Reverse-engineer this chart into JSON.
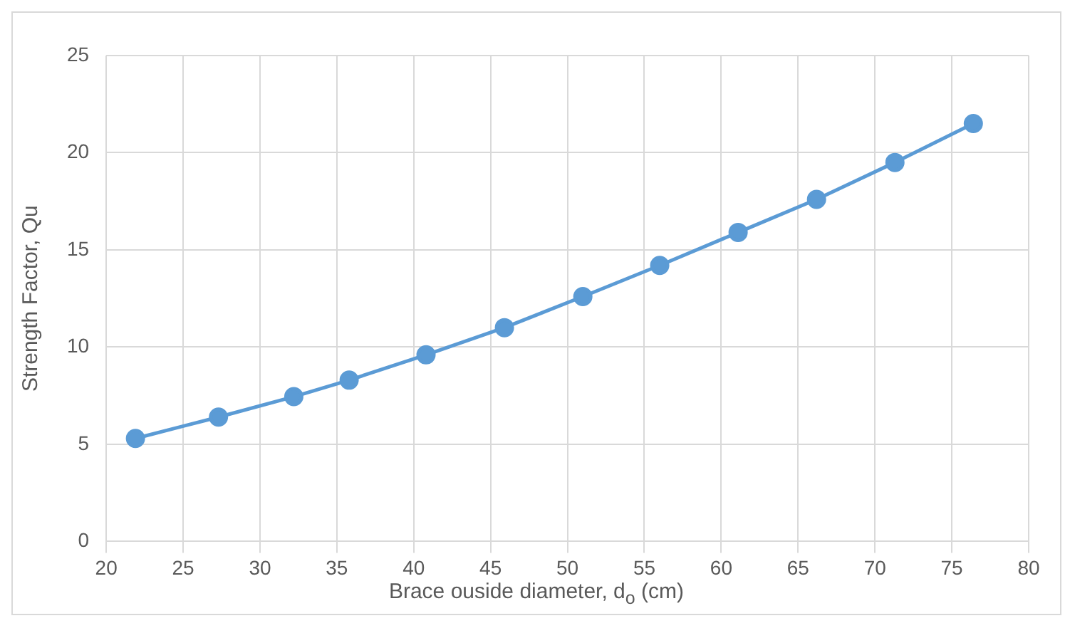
{
  "chart_data": {
    "type": "line",
    "xlabel": "Brace ouside diameter, d$_{o}$ (cm)",
    "ylabel": "Strength Factor, Qu",
    "series": [
      {
        "color": "#5b9bd5",
        "x": [
          21.9,
          27.3,
          32.2,
          35.8,
          40.8,
          45.9,
          51,
          56,
          61.1,
          66.2,
          71.3,
          76.4
        ],
        "values": [
          5.3,
          6.4,
          7.45,
          8.3,
          9.6,
          11,
          12.6,
          14.2,
          15.9,
          17.6,
          19.5,
          21.5
        ]
      }
    ],
    "xlim": [
      20,
      80
    ],
    "xticks": [
      20,
      25,
      30,
      35,
      40,
      45,
      50,
      55,
      60,
      65,
      70,
      75,
      80
    ],
    "ylim": [
      0,
      25
    ],
    "yticks": [
      0,
      5,
      10,
      15,
      20,
      25
    ],
    "grid": true,
    "legend": false,
    "marker": "circle",
    "line_style": "solid"
  }
}
